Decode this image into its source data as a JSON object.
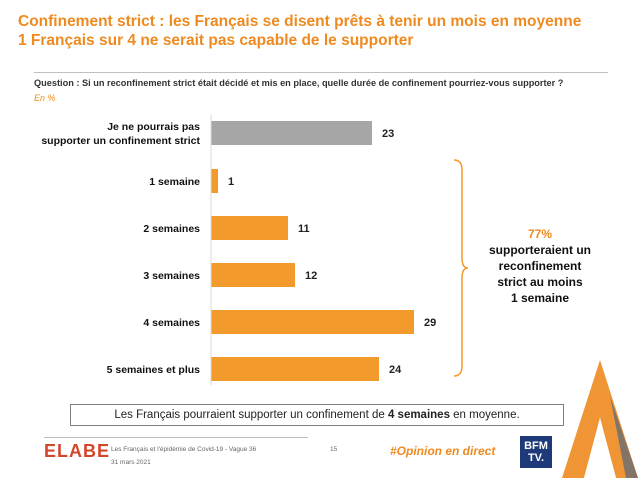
{
  "title": {
    "line1": "Confinement strict : les Français se disent prêts à tenir un mois en moyenne",
    "line2": "1 Français sur 4 ne serait pas capable de le supporter"
  },
  "question": "Question : Si un reconfinement strict était décidé et mis en place, quelle durée de confinement pourriez-vous supporter ?",
  "unit_note": "En %",
  "chart_data": {
    "type": "bar",
    "orientation": "horizontal",
    "categories": [
      "Je ne pourrais pas supporter un confinement strict",
      "1 semaine",
      "2 semaines",
      "3 semaines",
      "4 semaines",
      "5 semaines et plus"
    ],
    "values": [
      23,
      1,
      11,
      12,
      29,
      24
    ],
    "colors": [
      "#a6a6a6",
      "#f39a2c",
      "#f39a2c",
      "#f39a2c",
      "#f39a2c",
      "#f39a2c"
    ],
    "xlim": [
      0,
      30
    ],
    "title": "",
    "xlabel": "",
    "ylabel": ""
  },
  "callout": {
    "percent": "77%",
    "lines": [
      "supporteraient un",
      "reconfinement",
      "strict au moins",
      "1 semaine"
    ]
  },
  "summary": {
    "before": "Les Français pourraient supporter un confinement de ",
    "bold": "4 semaines",
    "after": " en moyenne."
  },
  "footer": {
    "logo": "ELABE",
    "source": "Les Français et l'épidémie de Covid-19 - Vague 36",
    "date": "31 mars 2021",
    "page": "15",
    "hashtag": "#Opinion en direct",
    "partner_line1": "BFM",
    "partner_line2": "TV."
  },
  "colors": {
    "accent": "#ee8a1f",
    "bar": "#f39a2c",
    "bar_grey": "#a6a6a6"
  }
}
